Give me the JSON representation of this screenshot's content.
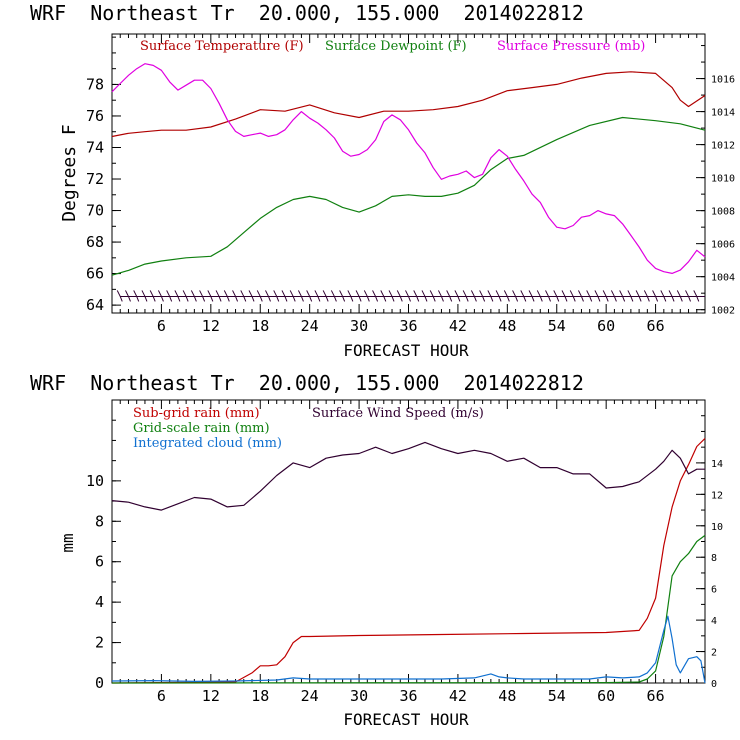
{
  "colors": {
    "temperature": "#b00000",
    "dewpoint": "#108010",
    "pressure": "#e000e0",
    "wind": "#300030",
    "subgrid": "#c00000",
    "gridscale": "#108010",
    "cloud": "#1070d0",
    "axis": "#000000"
  },
  "chart_data": [
    {
      "type": "line",
      "title": "WRF  Northeast Tr  20.000, 155.000  2014022812",
      "xlabel": "FORECAST HOUR",
      "ylabel": "Degrees F",
      "xlim": [
        0,
        72
      ],
      "ylim": [
        63.5,
        81.2
      ],
      "y2lim": [
        1001.8,
        1018.7
      ],
      "xticks": [
        6,
        12,
        18,
        24,
        30,
        36,
        42,
        48,
        54,
        60,
        66
      ],
      "xtick_labels": [
        "6",
        "12",
        "18",
        "24",
        "30",
        "36",
        "42",
        "48",
        "54",
        "60",
        "66"
      ],
      "yticks": [
        64,
        66,
        68,
        70,
        72,
        74,
        76,
        78
      ],
      "ytick_labels": [
        "64",
        "66",
        "68",
        "70",
        "72",
        "74",
        "76",
        "78"
      ],
      "y2ticks": [
        1002,
        1004,
        1006,
        1008,
        1010,
        1012,
        1014,
        1016
      ],
      "y2tick_labels": [
        "1002",
        "1004",
        "1006",
        "1008",
        "1010",
        "1012",
        "1014",
        "1016"
      ],
      "legend": [
        "Surface Temperature (F)",
        "Surface Dewpoint (F)",
        "Surface Pressure (mb)"
      ],
      "series": [
        {
          "name": "Surface Temperature (F)",
          "axis": "left",
          "x": [
            0,
            2,
            4,
            6,
            9,
            12,
            15,
            18,
            21,
            24,
            27,
            30,
            33,
            36,
            39,
            42,
            45,
            48,
            51,
            54,
            57,
            60,
            63,
            66,
            68,
            69,
            70,
            72
          ],
          "y": [
            74.7,
            74.9,
            75.0,
            75.1,
            75.1,
            75.3,
            75.8,
            76.4,
            76.3,
            76.7,
            76.2,
            75.9,
            76.3,
            76.3,
            76.4,
            76.6,
            77.0,
            77.6,
            77.8,
            78.0,
            78.4,
            78.7,
            78.8,
            78.7,
            77.8,
            77.0,
            76.6,
            77.3
          ]
        },
        {
          "name": "Surface Dewpoint (F)",
          "axis": "left",
          "x": [
            0,
            2,
            4,
            6,
            9,
            12,
            14,
            16,
            18,
            20,
            22,
            24,
            26,
            28,
            30,
            32,
            34,
            36,
            38,
            40,
            42,
            44,
            46,
            48,
            50,
            54,
            58,
            62,
            66,
            69,
            72
          ],
          "y": [
            65.9,
            66.2,
            66.6,
            66.8,
            67.0,
            67.1,
            67.7,
            68.6,
            69.5,
            70.2,
            70.7,
            70.9,
            70.7,
            70.2,
            69.9,
            70.3,
            70.9,
            71.0,
            70.9,
            70.9,
            71.1,
            71.6,
            72.6,
            73.3,
            73.5,
            74.5,
            75.4,
            75.9,
            75.7,
            75.5,
            75.1
          ]
        },
        {
          "name": "Surface Pressure (mb)",
          "axis": "right",
          "x": [
            0,
            1,
            2,
            3,
            4,
            5,
            6,
            7,
            8,
            9,
            10,
            11,
            12,
            13,
            14,
            15,
            16,
            17,
            18,
            19,
            20,
            21,
            22,
            23,
            24,
            25,
            26,
            27,
            28,
            29,
            30,
            31,
            32,
            33,
            34,
            35,
            36,
            37,
            38,
            39,
            40,
            41,
            42,
            43,
            44,
            45,
            46,
            47,
            48,
            49,
            50,
            51,
            52,
            53,
            54,
            55,
            56,
            57,
            58,
            59,
            60,
            61,
            62,
            63,
            64,
            65,
            66,
            67,
            68,
            69,
            70,
            71,
            72
          ],
          "y": [
            1015.2,
            1015.7,
            1016.2,
            1016.6,
            1016.9,
            1016.8,
            1016.5,
            1015.8,
            1015.3,
            1015.6,
            1015.9,
            1015.9,
            1015.4,
            1014.5,
            1013.5,
            1012.8,
            1012.5,
            1012.6,
            1012.7,
            1012.5,
            1012.6,
            1012.9,
            1013.5,
            1014.0,
            1013.6,
            1013.3,
            1012.9,
            1012.4,
            1011.6,
            1011.3,
            1011.4,
            1011.7,
            1012.3,
            1013.4,
            1013.8,
            1013.5,
            1012.9,
            1012.1,
            1011.5,
            1010.6,
            1009.9,
            1010.1,
            1010.2,
            1010.4,
            1010.0,
            1010.2,
            1011.2,
            1011.7,
            1011.3,
            1010.5,
            1009.8,
            1009.0,
            1008.5,
            1007.6,
            1007.0,
            1006.9,
            1007.1,
            1007.6,
            1007.7,
            1008.0,
            1007.8,
            1007.7,
            1007.2,
            1006.5,
            1005.8,
            1005.0,
            1004.5,
            1004.3,
            1004.2,
            1004.4,
            1004.9,
            1005.6,
            1005.2
          ]
        }
      ],
      "wind_barbs": {
        "count": 71,
        "level": 64.55
      }
    },
    {
      "type": "line",
      "title": "WRF  Northeast Tr  20.000, 155.000  2014022812",
      "xlabel": "FORECAST HOUR",
      "ylabel": "mm",
      "xlim": [
        0,
        72
      ],
      "ylim": [
        0,
        14
      ],
      "y2lim": [
        0,
        18
      ],
      "xticks": [
        6,
        12,
        18,
        24,
        30,
        36,
        42,
        48,
        54,
        60,
        66
      ],
      "xtick_labels": [
        "6",
        "12",
        "18",
        "24",
        "30",
        "36",
        "42",
        "48",
        "54",
        "60",
        "66"
      ],
      "yticks": [
        0,
        2,
        4,
        6,
        8,
        10
      ],
      "ytick_labels": [
        "0",
        "2",
        "4",
        "6",
        "8",
        "10"
      ],
      "y2ticks": [
        0,
        2,
        4,
        6,
        8,
        10,
        12,
        14
      ],
      "y2tick_labels": [
        "0",
        "2",
        "4",
        "6",
        "8",
        "10",
        "12",
        "14"
      ],
      "legend": [
        "Sub-grid rain (mm)",
        "Grid-scale rain (mm)",
        "Integrated cloud (mm)",
        "Surface Wind Speed (m/s)"
      ],
      "series": [
        {
          "name": "Sub-grid rain (mm)",
          "axis": "left",
          "x": [
            0,
            15,
            17,
            18,
            19,
            20,
            21,
            22,
            23,
            24,
            30,
            40,
            50,
            60,
            64,
            65,
            66,
            67,
            68,
            69,
            70,
            71,
            72
          ],
          "y": [
            0,
            0.05,
            0.5,
            0.85,
            0.85,
            0.9,
            1.3,
            2.0,
            2.3,
            2.3,
            2.35,
            2.4,
            2.45,
            2.5,
            2.6,
            3.2,
            4.2,
            6.8,
            8.7,
            10.0,
            10.8,
            11.7,
            12.1
          ]
        },
        {
          "name": "Grid-scale rain (mm)",
          "axis": "left",
          "x": [
            0,
            60,
            64,
            65,
            66,
            67,
            68,
            69,
            70,
            71,
            72
          ],
          "y": [
            0,
            0.02,
            0.05,
            0.2,
            0.6,
            2.3,
            5.3,
            6.0,
            6.4,
            7.0,
            7.3
          ]
        },
        {
          "name": "Integrated cloud (mm)",
          "axis": "left",
          "x": [
            0,
            5,
            10,
            15,
            20,
            22,
            24,
            30,
            36,
            40,
            44,
            46,
            47,
            48,
            50,
            55,
            58,
            60,
            62,
            64,
            65,
            66,
            67,
            67.5,
            68,
            68.5,
            69,
            70,
            71,
            71.5,
            72
          ],
          "y": [
            0.1,
            0.12,
            0.08,
            0.1,
            0.15,
            0.25,
            0.2,
            0.2,
            0.2,
            0.2,
            0.25,
            0.45,
            0.3,
            0.25,
            0.2,
            0.2,
            0.2,
            0.3,
            0.25,
            0.3,
            0.5,
            1.0,
            2.6,
            3.3,
            2.2,
            0.9,
            0.5,
            1.2,
            1.3,
            1.1,
            0.0
          ]
        },
        {
          "name": "Surface Wind Speed (m/s)",
          "axis": "right",
          "x": [
            0,
            2,
            4,
            6,
            8,
            10,
            12,
            14,
            16,
            18,
            20,
            22,
            24,
            26,
            28,
            30,
            32,
            34,
            36,
            38,
            40,
            42,
            44,
            46,
            48,
            50,
            52,
            54,
            56,
            58,
            60,
            62,
            64,
            66,
            67,
            68,
            69,
            70,
            71,
            72
          ],
          "y": [
            11.6,
            11.5,
            11.2,
            11.0,
            11.4,
            11.8,
            11.7,
            11.2,
            11.3,
            12.2,
            13.2,
            14.0,
            13.7,
            14.3,
            14.5,
            14.6,
            15.0,
            14.6,
            14.9,
            15.3,
            14.9,
            14.6,
            14.8,
            14.6,
            14.1,
            14.3,
            13.7,
            13.7,
            13.3,
            13.3,
            12.4,
            12.5,
            12.8,
            13.6,
            14.1,
            14.8,
            14.3,
            13.3,
            13.6,
            13.6
          ]
        }
      ]
    }
  ]
}
